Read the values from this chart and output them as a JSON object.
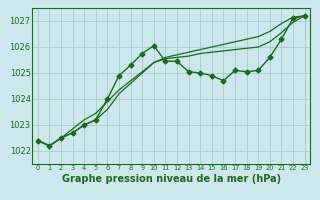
{
  "title": "Graphe pression niveau de la mer (hPa)",
  "background_color": "#cce8ec",
  "grid_color": "#aacccc",
  "line_color": "#1a6b1a",
  "xlim": [
    -0.5,
    23.5
  ],
  "ylim": [
    1021.5,
    1027.5
  ],
  "yticks": [
    1022,
    1023,
    1024,
    1025,
    1026,
    1027
  ],
  "xticks": [
    0,
    1,
    2,
    3,
    4,
    5,
    6,
    7,
    8,
    9,
    10,
    11,
    12,
    13,
    14,
    15,
    16,
    17,
    18,
    19,
    20,
    21,
    22,
    23
  ],
  "series": [
    [
      1022.4,
      1022.2,
      1022.5,
      1022.7,
      1023.0,
      1023.2,
      1024.0,
      1024.9,
      1025.3,
      1025.75,
      1026.05,
      1025.45,
      1025.45,
      1025.05,
      1025.0,
      1024.9,
      1024.7,
      1025.1,
      1025.05,
      1025.1,
      1025.6,
      1026.3,
      1027.1,
      1027.2
    ],
    [
      1022.4,
      1022.2,
      1022.5,
      1022.7,
      1023.0,
      1023.2,
      1023.6,
      1024.2,
      1024.6,
      1025.0,
      1025.4,
      1025.6,
      1025.7,
      1025.8,
      1025.9,
      1026.0,
      1026.1,
      1026.2,
      1026.3,
      1026.4,
      1026.6,
      1026.9,
      1027.15,
      1027.2
    ],
    [
      1022.4,
      1022.2,
      1022.5,
      1022.85,
      1023.2,
      1023.45,
      1023.9,
      1024.35,
      1024.7,
      1025.05,
      1025.4,
      1025.55,
      1025.6,
      1025.65,
      1025.75,
      1025.8,
      1025.85,
      1025.9,
      1025.95,
      1026.0,
      1026.2,
      1026.55,
      1026.95,
      1027.2
    ]
  ],
  "show_markers": [
    true,
    false,
    false
  ],
  "markersize": 2.5,
  "linewidths": [
    1.0,
    0.9,
    0.9
  ],
  "ylabel_fontsize": 6.0,
  "xlabel_fontsize": 7.0,
  "xtick_fontsize": 4.8,
  "ytick_fontsize": 6.0
}
